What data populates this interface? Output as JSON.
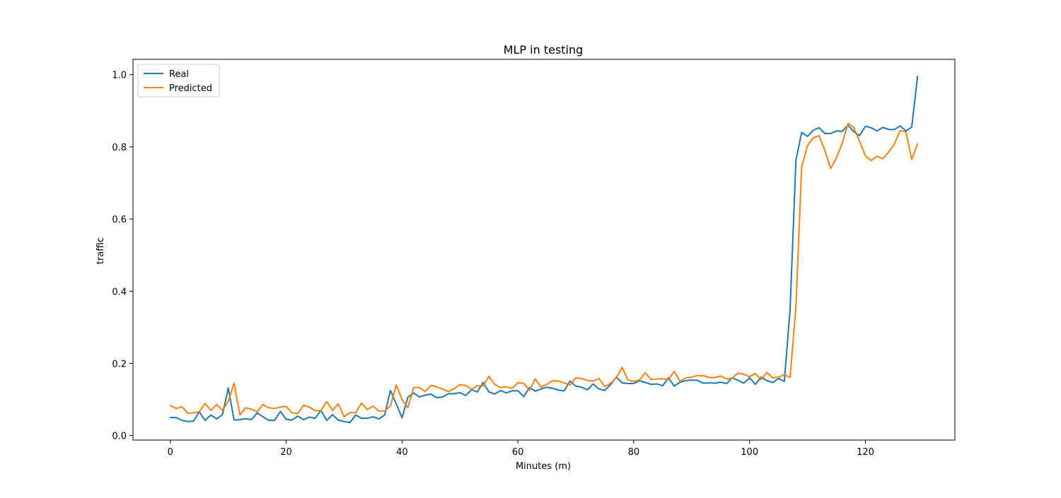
{
  "chart_data": {
    "type": "line",
    "title": "MLP in testing",
    "xlabel": "Minutes (m)",
    "ylabel": "traffic",
    "xlim": [
      -6.45,
      135.45
    ],
    "ylim": [
      -0.0125,
      1.0425
    ],
    "xticks": [
      0,
      20,
      40,
      60,
      80,
      100,
      120
    ],
    "yticks": [
      0.0,
      0.2,
      0.4,
      0.6,
      0.8,
      1.0
    ],
    "xtick_labels": [
      "0",
      "20",
      "40",
      "60",
      "80",
      "100",
      "120"
    ],
    "ytick_labels": [
      "0.0",
      "0.2",
      "0.4",
      "0.6",
      "0.8",
      "1.0"
    ],
    "grid": false,
    "legend_position": "top-left",
    "series": [
      {
        "name": "Real",
        "color": "#1f77b4",
        "values": [
          0.05,
          0.05,
          0.042,
          0.039,
          0.04,
          0.066,
          0.042,
          0.057,
          0.046,
          0.058,
          0.132,
          0.043,
          0.044,
          0.047,
          0.044,
          0.063,
          0.052,
          0.042,
          0.042,
          0.067,
          0.045,
          0.043,
          0.054,
          0.044,
          0.051,
          0.048,
          0.07,
          0.042,
          0.058,
          0.043,
          0.039,
          0.036,
          0.057,
          0.048,
          0.048,
          0.052,
          0.046,
          0.057,
          0.125,
          0.088,
          0.049,
          0.106,
          0.118,
          0.107,
          0.112,
          0.115,
          0.105,
          0.107,
          0.116,
          0.116,
          0.119,
          0.111,
          0.127,
          0.121,
          0.147,
          0.121,
          0.115,
          0.125,
          0.118,
          0.124,
          0.124,
          0.108,
          0.133,
          0.123,
          0.129,
          0.134,
          0.131,
          0.126,
          0.124,
          0.151,
          0.137,
          0.134,
          0.127,
          0.143,
          0.129,
          0.125,
          0.141,
          0.162,
          0.146,
          0.144,
          0.144,
          0.152,
          0.147,
          0.142,
          0.143,
          0.138,
          0.16,
          0.137,
          0.148,
          0.152,
          0.154,
          0.153,
          0.145,
          0.146,
          0.145,
          0.148,
          0.144,
          0.16,
          0.153,
          0.145,
          0.16,
          0.142,
          0.162,
          0.152,
          0.147,
          0.158,
          0.15,
          0.35,
          0.763,
          0.84,
          0.829,
          0.846,
          0.853,
          0.837,
          0.837,
          0.844,
          0.843,
          0.86,
          0.842,
          0.831,
          0.857,
          0.853,
          0.844,
          0.854,
          0.848,
          0.848,
          0.858,
          0.844,
          0.855,
          0.995
        ]
      },
      {
        "name": "Predicted",
        "color": "#ff7f0e",
        "values": [
          0.083,
          0.075,
          0.08,
          0.062,
          0.063,
          0.066,
          0.089,
          0.07,
          0.086,
          0.07,
          0.095,
          0.145,
          0.057,
          0.077,
          0.073,
          0.066,
          0.086,
          0.077,
          0.075,
          0.079,
          0.081,
          0.063,
          0.061,
          0.084,
          0.079,
          0.069,
          0.069,
          0.094,
          0.07,
          0.088,
          0.052,
          0.064,
          0.063,
          0.09,
          0.072,
          0.082,
          0.068,
          0.068,
          0.082,
          0.14,
          0.1,
          0.077,
          0.133,
          0.133,
          0.122,
          0.139,
          0.135,
          0.129,
          0.122,
          0.13,
          0.141,
          0.139,
          0.128,
          0.138,
          0.138,
          0.164,
          0.142,
          0.133,
          0.135,
          0.131,
          0.146,
          0.145,
          0.125,
          0.157,
          0.134,
          0.142,
          0.152,
          0.151,
          0.146,
          0.14,
          0.16,
          0.158,
          0.153,
          0.151,
          0.158,
          0.136,
          0.145,
          0.16,
          0.189,
          0.154,
          0.15,
          0.154,
          0.174,
          0.155,
          0.157,
          0.157,
          0.155,
          0.178,
          0.15,
          0.16,
          0.162,
          0.166,
          0.166,
          0.161,
          0.161,
          0.165,
          0.157,
          0.159,
          0.173,
          0.17,
          0.163,
          0.172,
          0.155,
          0.175,
          0.16,
          0.162,
          0.169,
          0.161,
          0.355,
          0.745,
          0.803,
          0.825,
          0.831,
          0.79,
          0.74,
          0.77,
          0.81,
          0.865,
          0.854,
          0.815,
          0.775,
          0.762,
          0.774,
          0.767,
          0.785,
          0.808,
          0.845,
          0.842,
          0.765,
          0.808
        ]
      }
    ]
  }
}
